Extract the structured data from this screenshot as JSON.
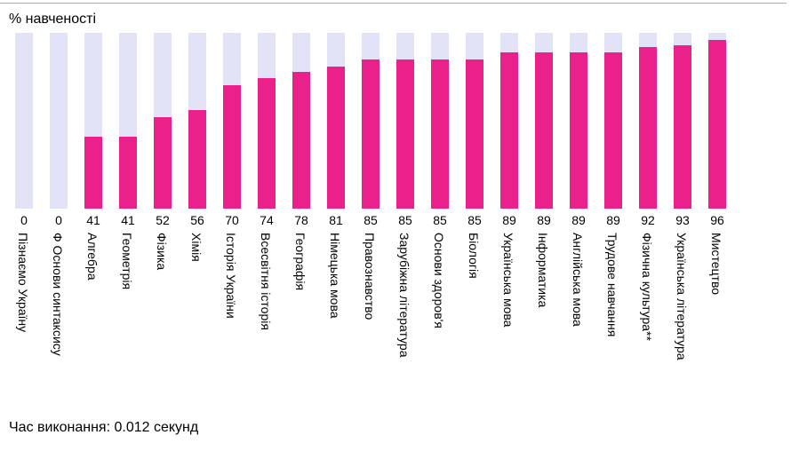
{
  "header": {
    "title": "% навченості"
  },
  "footer": {
    "text": "Час виконання: 0.012 секунд"
  },
  "colors": {
    "fill": "#eb218b",
    "track": "#e3e3f8"
  },
  "chart_data": {
    "type": "bar",
    "title": "% навченості",
    "ylim": [
      0,
      100
    ],
    "categories": [
      "Пізнаємо Україну",
      "Ф Основи синтаксису",
      "Алгебра",
      "Геометрія",
      "Фізика",
      "Хімія",
      "Історія України",
      "Всесвітня історія",
      "Географія",
      "Німецька мова",
      "Правознавство",
      "Зарубіжна література",
      "Основи здоров'я",
      "Біологія",
      "Українська мова",
      "Інформатика",
      "Англійська мова",
      "Трудове навчання",
      "Фізична культура**",
      "Українська література",
      "Мистецтво"
    ],
    "values": [
      0,
      0,
      41,
      41,
      52,
      56,
      70,
      74,
      78,
      81,
      85,
      85,
      85,
      85,
      89,
      89,
      89,
      89,
      92,
      93,
      96
    ]
  }
}
